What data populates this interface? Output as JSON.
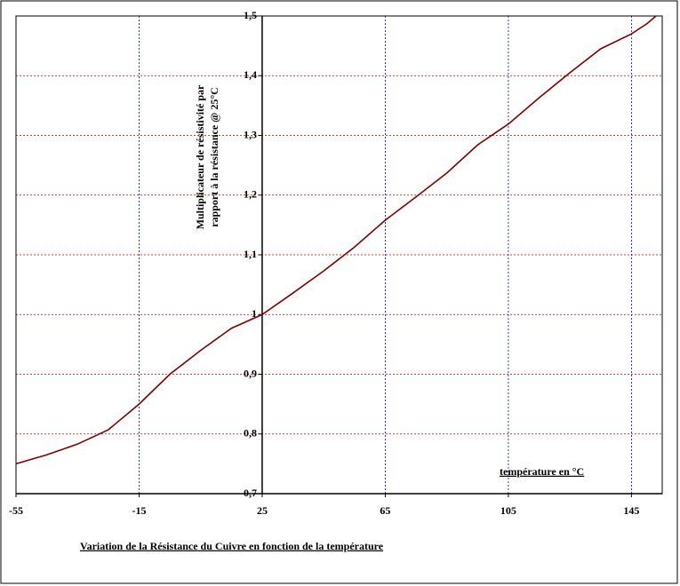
{
  "chart_data": {
    "type": "line",
    "title": "Variation de la Résistance du Cuivre en fonction de la température",
    "x_label": "température en °C",
    "y_label": [
      "Multiplicateur de résistivité par",
      "rapport à la résistance @ 25°C"
    ],
    "x": [
      -55,
      -45,
      -35,
      -25,
      -15,
      -5,
      5,
      15,
      25,
      35,
      45,
      55,
      65,
      75,
      85,
      95,
      105,
      115,
      125,
      135,
      145,
      150,
      153
    ],
    "series": [
      {
        "name": "Cuivre",
        "color": "#800000",
        "values": [
          0.75,
          0.765,
          0.783,
          0.807,
          0.85,
          0.9,
          0.94,
          0.977,
          1.0,
          1.036,
          1.073,
          1.113,
          1.158,
          1.197,
          1.237,
          1.284,
          1.319,
          1.363,
          1.405,
          1.445,
          1.47,
          1.487,
          1.5
        ]
      }
    ],
    "xlim": [
      -55,
      155
    ],
    "ylim": [
      0.7,
      1.5
    ],
    "xticks": [
      -55,
      -15,
      25,
      65,
      105,
      145
    ],
    "yticks": [
      {
        "value": 0.7,
        "label": "0,7"
      },
      {
        "value": 0.8,
        "label": "0,8"
      },
      {
        "value": 0.9,
        "label": "0,9"
      },
      1,
      {
        "value": 1.1,
        "label": "1,1"
      },
      {
        "value": 1.2,
        "label": "1,2"
      },
      {
        "value": 1.3,
        "label": "1,3"
      },
      {
        "value": 1.4,
        "label": "1,4"
      },
      {
        "value": 1.5,
        "label": "1,5"
      }
    ],
    "grid": true,
    "xgrid_color": "#0000cc",
    "ygrid_color": "#cc0000"
  }
}
